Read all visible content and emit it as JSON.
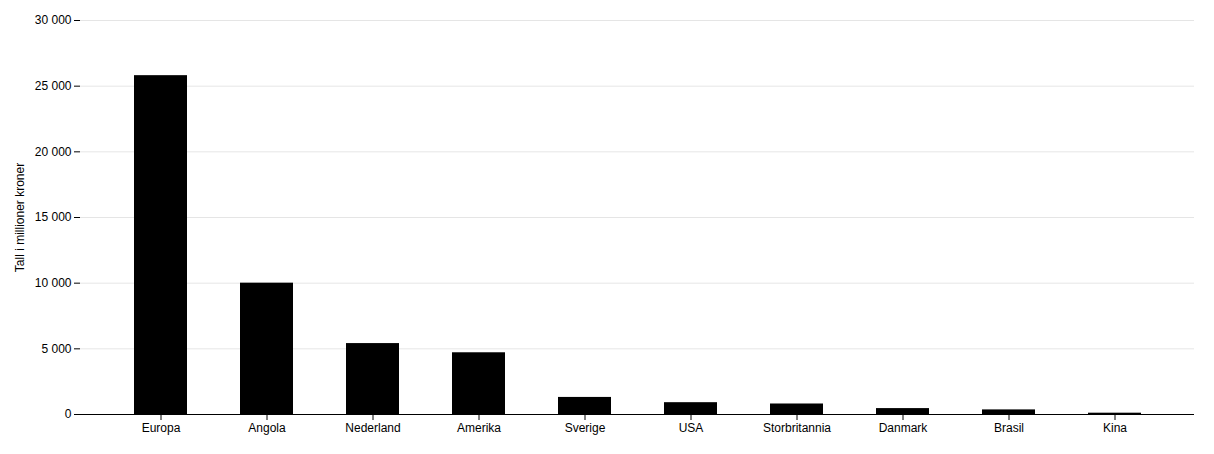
{
  "chart_data": {
    "type": "bar",
    "categories": [
      "Europa",
      "Angola",
      "Nederland",
      "Amerika",
      "Sverige",
      "USA",
      "Storbritannia",
      "Danmark",
      "Brasil",
      "Kina"
    ],
    "values": [
      25800,
      10000,
      5400,
      4700,
      1300,
      900,
      800,
      450,
      350,
      100
    ],
    "ylabel": "Tall i millioner kroner",
    "ylim": [
      0,
      30000
    ],
    "yticks": [
      0,
      {
        "value": 5000,
        "label": "5 000"
      },
      {
        "value": 10000,
        "label": "10 000"
      },
      {
        "value": 15000,
        "label": "15 000"
      },
      {
        "value": 20000,
        "label": "20 000"
      },
      {
        "value": 25000,
        "label": "25 000"
      },
      {
        "value": 30000,
        "label": "30 000"
      }
    ],
    "grid": true
  }
}
